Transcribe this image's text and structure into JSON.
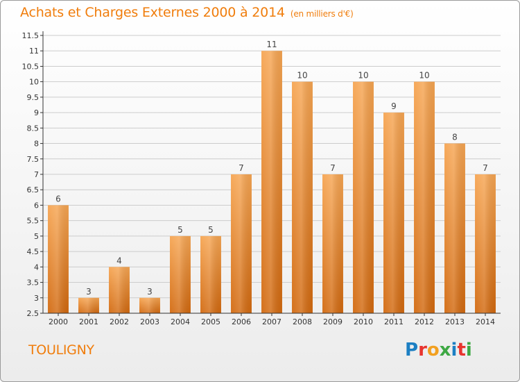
{
  "header": {
    "title": "Achats et Charges Externes 2000 à 2014",
    "subtitle": "(en milliers d'€)"
  },
  "footer": {
    "commune": "TOULIGNY",
    "logo_letters": [
      {
        "char": "P",
        "color": "#1c7fc3"
      },
      {
        "char": "r",
        "color": "#e8342e"
      },
      {
        "char": "o",
        "color": "#f2a020"
      },
      {
        "char": "x",
        "color": "#3da843"
      },
      {
        "char": "i",
        "color": "#1c7fc3"
      },
      {
        "char": "t",
        "color": "#e8342e"
      },
      {
        "char": "i",
        "color": "#3da843"
      }
    ]
  },
  "colors": {
    "bar_top": "#f6a552",
    "bar_bottom": "#d2690f",
    "accent": "#f07d0c",
    "grid": "#cccccc"
  },
  "chart_data": {
    "type": "bar",
    "title": "Achats et Charges Externes 2000 à 2014",
    "subtitle": "(en milliers d'€)",
    "categories": [
      "2000",
      "2001",
      "2002",
      "2003",
      "2004",
      "2005",
      "2006",
      "2007",
      "2008",
      "2009",
      "2010",
      "2011",
      "2012",
      "2013",
      "2014"
    ],
    "values": [
      6,
      3,
      4,
      3,
      5,
      5,
      7,
      11,
      10,
      7,
      10,
      9,
      10,
      8,
      7
    ],
    "ylim": [
      2.5,
      11.5
    ],
    "yticks": [
      "2.5",
      "3",
      "3.5",
      "4",
      "4.5",
      "5",
      "5.5",
      "6",
      "6.5",
      "7",
      "7.5",
      "8",
      "8.5",
      "9",
      "9.5",
      "10",
      "10.5",
      "11",
      "11.5"
    ],
    "grid": true,
    "xlabel": "",
    "ylabel": ""
  }
}
